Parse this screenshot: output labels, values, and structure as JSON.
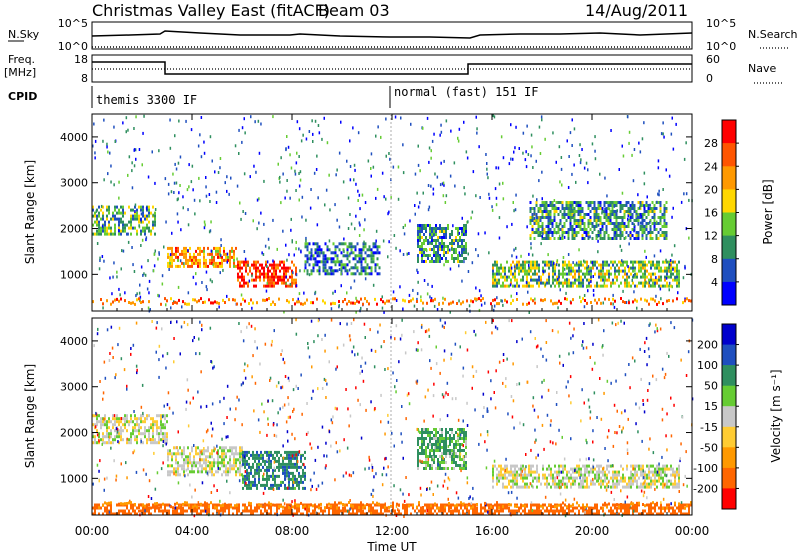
{
  "header": {
    "title": "Christmas Valley East (fitACF)",
    "beam": "Beam 03",
    "date": "14/Aug/2011"
  },
  "nsky": {
    "label": "N.Sky",
    "left_top": "10^5",
    "left_bottom": "10^0",
    "right_top": "10^5",
    "right_bottom": "10^0",
    "right_label": "N.Search"
  },
  "freq": {
    "label_line1": "Freq.",
    "label_line2": "[MHz]",
    "left_top": "18",
    "left_bottom": "8",
    "right_top": "60",
    "right_bottom": "0",
    "right_label": "Nave"
  },
  "cpid": {
    "label": "CPID",
    "segments": [
      "themis 3300 IF",
      "normal (fast) 151 IF"
    ]
  },
  "time_axis": {
    "label": "Time UT",
    "ticks": [
      "00:00",
      "04:00",
      "08:00",
      "12:00",
      "16:00",
      "20:00",
      "00:00"
    ]
  },
  "colors": {
    "power_scale": [
      "#0000ff",
      "#1f4fbf",
      "#2f8f5f",
      "#66cc33",
      "#ffd700",
      "#ff9900",
      "#ff5500",
      "#ff0000"
    ],
    "velocity_scale": [
      "#ff0000",
      "#ff6600",
      "#ff9900",
      "#ffcc33",
      "#c8c8c8",
      "#66cc33",
      "#2f8f5f",
      "#1f4fbf",
      "#0000cc"
    ]
  },
  "chart_data": [
    {
      "type": "heatmap",
      "title": "",
      "xlabel": "",
      "ylabel": "Slant Range [km]",
      "xlim": [
        "00:00",
        "24:00"
      ],
      "ylim": [
        200,
        4500
      ],
      "yticks": [
        "1000",
        "2000",
        "3000",
        "4000"
      ],
      "colorbar": {
        "label": "Power [dB]",
        "ticks": [
          "4",
          "8",
          "12",
          "16",
          "20",
          "24",
          "28"
        ],
        "range": [
          0,
          32
        ]
      },
      "regions": [
        {
          "t_start_h": 0.0,
          "t_end_h": 2.5,
          "range_km": [
            1900,
            2500
          ],
          "level": 12
        },
        {
          "t_start_h": 3.0,
          "t_end_h": 5.8,
          "range_km": [
            1200,
            1600
          ],
          "level": 22
        },
        {
          "t_start_h": 5.8,
          "t_end_h": 8.2,
          "range_km": [
            750,
            1300
          ],
          "level": 28
        },
        {
          "t_start_h": 8.5,
          "t_end_h": 11.5,
          "range_km": [
            1000,
            1700
          ],
          "level": 8
        },
        {
          "t_start_h": 13.0,
          "t_end_h": 15.0,
          "range_km": [
            1300,
            2100
          ],
          "level": 10
        },
        {
          "t_start_h": 16.0,
          "t_end_h": 23.5,
          "range_km": [
            750,
            1300
          ],
          "level": 14
        },
        {
          "t_start_h": 17.5,
          "t_end_h": 23.0,
          "range_km": [
            1800,
            2600
          ],
          "level": 10
        }
      ]
    },
    {
      "type": "heatmap",
      "title": "",
      "xlabel": "Time UT",
      "ylabel": "Slant Range [km]",
      "xlim": [
        "00:00",
        "24:00"
      ],
      "ylim": [
        200,
        4500
      ],
      "yticks": [
        "1000",
        "2000",
        "3000",
        "4000"
      ],
      "colorbar": {
        "label": "Velocity [m s⁻¹]",
        "ticks": [
          "200",
          "100",
          "50",
          "15",
          "-15",
          "-50",
          "-100",
          "-200"
        ],
        "range": [
          -250,
          250
        ]
      },
      "regions": [
        {
          "t_start_h": 0.0,
          "t_end_h": 3.0,
          "range_km": [
            1800,
            2400
          ],
          "level": 0
        },
        {
          "t_start_h": 3.0,
          "t_end_h": 6.0,
          "range_km": [
            1100,
            1700
          ],
          "level": 0
        },
        {
          "t_start_h": 6.0,
          "t_end_h": 8.5,
          "range_km": [
            800,
            1600
          ],
          "level": 60
        },
        {
          "t_start_h": 13.0,
          "t_end_h": 15.0,
          "range_km": [
            1200,
            2100
          ],
          "level": 40
        },
        {
          "t_start_h": 16.0,
          "t_end_h": 23.5,
          "range_km": [
            800,
            1300
          ],
          "level": 0
        },
        {
          "t_start_h": 0.0,
          "t_end_h": 24.0,
          "range_km": [
            200,
            450
          ],
          "level": -120
        }
      ]
    }
  ]
}
